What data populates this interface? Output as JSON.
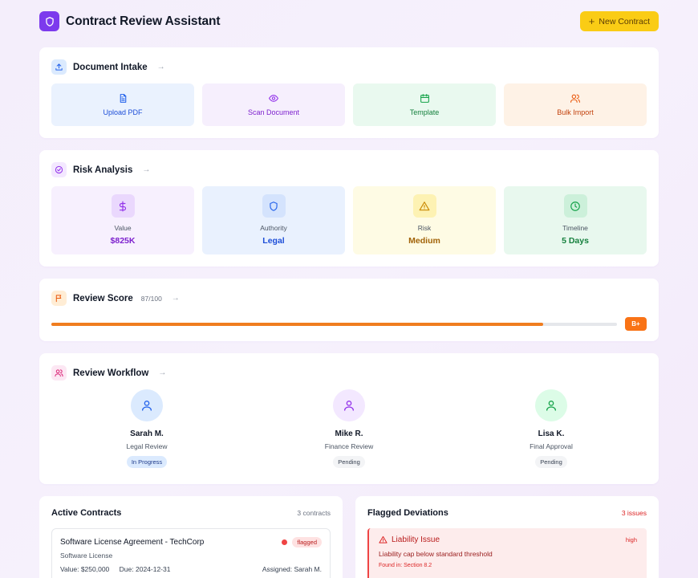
{
  "header": {
    "title": "Contract Review Assistant",
    "new_button": "New Contract"
  },
  "intake": {
    "title": "Document Intake",
    "tiles": [
      {
        "label": "Upload PDF",
        "icon": "file-text-icon"
      },
      {
        "label": "Scan Document",
        "icon": "eye-icon"
      },
      {
        "label": "Template",
        "icon": "calendar-icon"
      },
      {
        "label": "Bulk Import",
        "icon": "users-icon"
      }
    ]
  },
  "risk": {
    "title": "Risk Analysis",
    "metrics": [
      {
        "label": "Value",
        "value": "$825K",
        "icon": "dollar-icon"
      },
      {
        "label": "Authority",
        "value": "Legal",
        "icon": "shield-icon"
      },
      {
        "label": "Risk",
        "value": "Medium",
        "icon": "warning-icon"
      },
      {
        "label": "Timeline",
        "value": "5 Days",
        "icon": "clock-icon"
      }
    ]
  },
  "score": {
    "title": "Review Score",
    "value_text": "87/100",
    "progress": 0.87,
    "grade": "B+"
  },
  "workflow": {
    "title": "Review Workflow",
    "reviewers": [
      {
        "name": "Sarah M.",
        "role": "Legal Review",
        "status": "In Progress"
      },
      {
        "name": "Mike R.",
        "role": "Finance Review",
        "status": "Pending"
      },
      {
        "name": "Lisa K.",
        "role": "Final Approval",
        "status": "Pending"
      }
    ]
  },
  "contracts": {
    "title": "Active Contracts",
    "count": "3 contracts",
    "items": [
      {
        "name": "Software License Agreement - TechCorp",
        "type": "Software License",
        "flag": "flagged",
        "value": "Value: $250,000",
        "due": "Due: 2024-12-31",
        "assigned": "Assigned: Sarah M."
      }
    ]
  },
  "deviations": {
    "title": "Flagged Deviations",
    "count": "3 issues",
    "items": [
      {
        "title": "Liability Issue",
        "severity": "high",
        "description": "Liability cap below standard threshold",
        "location": "Found in: Section 8.2"
      }
    ]
  },
  "colors": {
    "brand": "#7c3aed",
    "accent_yellow": "#facc15",
    "score_orange": "#f97316",
    "danger": "#ef4444"
  }
}
